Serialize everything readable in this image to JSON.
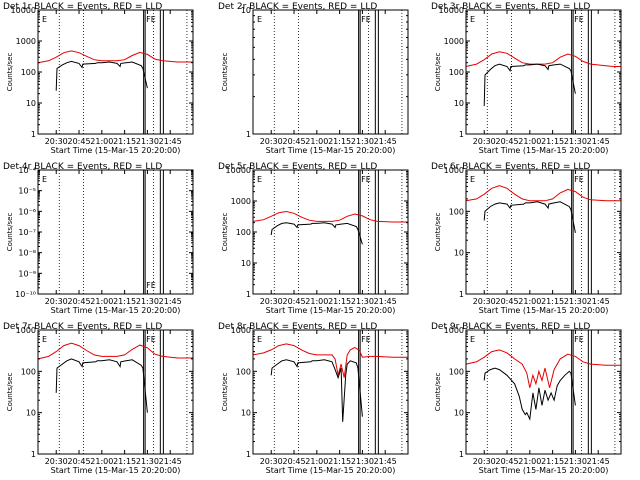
{
  "colors": {
    "events": "#000000",
    "lld": "#e60000"
  },
  "time_axis": {
    "tick_labels": [
      "20:30",
      "20:45",
      "21:00",
      "21:15",
      "21:30",
      "21:45"
    ],
    "tick_minutes_after_2020": [
      10,
      25,
      40,
      55,
      70,
      85
    ],
    "range_minutes_after_2020": [
      -2,
      100
    ],
    "xlabel": "Start Time (15-Mar-15 20:20:00)",
    "dotted_minutes": [
      12,
      28,
      74,
      96
    ],
    "solid_minutes": [
      67.5,
      68.5,
      78.5,
      80.5
    ],
    "markers": [
      {
        "text": "E",
        "minute": 0
      },
      {
        "text": "FE",
        "minute": 68.5
      }
    ]
  },
  "chart_data": [
    {
      "type": "line",
      "title": "Det 1r BLACK = Events, RED = LLD",
      "ylabel": "Counts/sec",
      "yscale": "log",
      "ylim": [
        1,
        10000
      ],
      "ytick_labels": [
        "1",
        "10",
        "100",
        "1000",
        "10000"
      ],
      "series": [
        {
          "x": [
            -2,
            5,
            10,
            15,
            20,
            25,
            30,
            35,
            40,
            50,
            55,
            60,
            65,
            70,
            75,
            80,
            90,
            95,
            100
          ],
          "y": [
            200,
            230,
            300,
            420,
            480,
            420,
            320,
            250,
            230,
            230,
            250,
            340,
            430,
            370,
            260,
            230,
            210,
            210,
            210
          ]
        },
        {
          "x": [
            10,
            10.5,
            14,
            17,
            20,
            25,
            27,
            27.5,
            36,
            37,
            40,
            45,
            50,
            52,
            52.5,
            56,
            60,
            66,
            67,
            70
          ],
          "y": [
            25,
            130,
            170,
            200,
            220,
            190,
            140,
            180,
            190,
            200,
            200,
            210,
            190,
            150,
            190,
            200,
            210,
            160,
            130,
            30
          ]
        }
      ]
    },
    {
      "type": "line",
      "title": "Det 2r BLACK = Events, RED = LLD",
      "ylabel": "Counts/sec",
      "yscale": "log",
      "ylim": [
        1,
        10
      ],
      "ytick_labels": [
        "1",
        "10"
      ],
      "series": []
    },
    {
      "type": "line",
      "title": "Det 3r BLACK = Events, RED = LLD",
      "ylabel": "Counts/sec",
      "yscale": "log",
      "ylim": [
        1,
        10000
      ],
      "ytick_labels": [
        "1",
        "10",
        "100",
        "1000",
        "10000"
      ],
      "series": [
        {
          "x": [
            -2,
            5,
            10,
            15,
            20,
            25,
            30,
            35,
            40,
            50,
            55,
            60,
            65,
            70,
            75,
            80,
            90,
            95,
            100
          ],
          "y": [
            150,
            180,
            250,
            380,
            450,
            400,
            280,
            200,
            180,
            180,
            200,
            300,
            380,
            320,
            220,
            180,
            160,
            150,
            150
          ]
        },
        {
          "x": [
            10,
            10.5,
            14,
            17,
            20,
            25,
            27,
            27.5,
            36,
            37,
            40,
            45,
            50,
            52,
            52.5,
            56,
            60,
            66,
            67,
            70
          ],
          "y": [
            8,
            80,
            120,
            160,
            180,
            150,
            110,
            150,
            160,
            170,
            170,
            180,
            160,
            120,
            160,
            170,
            180,
            130,
            110,
            20
          ]
        }
      ]
    },
    {
      "type": "line",
      "title": "Det 4r BLACK = Events, RED = LLD",
      "ylabel": "Counts/sec",
      "yscale": "log",
      "ylim": [
        1e-10,
        0.0001
      ],
      "ytick_labels": [
        "10⁻¹⁰",
        "10⁻⁹",
        "10⁻⁸",
        "10⁻⁷",
        "10⁻⁶",
        "10⁻⁵",
        "10⁻⁴"
      ],
      "series": []
    },
    {
      "type": "line",
      "title": "Det 5r BLACK = Events, RED = LLD",
      "ylabel": "Counts/sec",
      "yscale": "log",
      "ylim": [
        1,
        10000
      ],
      "ytick_labels": [
        "1",
        "10",
        "100",
        "1000",
        "10000"
      ],
      "series": [
        {
          "x": [
            -2,
            5,
            10,
            15,
            20,
            25,
            30,
            35,
            40,
            50,
            55,
            60,
            65,
            70,
            75,
            80,
            90,
            95,
            100
          ],
          "y": [
            220,
            250,
            320,
            420,
            460,
            400,
            300,
            240,
            220,
            220,
            240,
            320,
            380,
            330,
            250,
            220,
            210,
            210,
            210
          ]
        },
        {
          "x": [
            10,
            10.5,
            14,
            17,
            20,
            25,
            27,
            27.5,
            36,
            37,
            40,
            45,
            50,
            52,
            52.5,
            56,
            60,
            66,
            67,
            70
          ],
          "y": [
            80,
            120,
            160,
            190,
            200,
            180,
            140,
            170,
            180,
            190,
            190,
            200,
            180,
            140,
            170,
            180,
            190,
            150,
            120,
            40
          ]
        }
      ]
    },
    {
      "type": "line",
      "title": "Det 6r BLACK = Events, RED = LLD",
      "ylabel": "Counts/sec",
      "yscale": "log",
      "ylim": [
        1,
        1000
      ],
      "ytick_labels": [
        "1",
        "10",
        "100",
        "1000"
      ],
      "series": [
        {
          "x": [
            -2,
            5,
            10,
            15,
            20,
            25,
            30,
            35,
            40,
            50,
            55,
            60,
            65,
            70,
            75,
            80,
            90,
            95,
            100
          ],
          "y": [
            180,
            200,
            260,
            360,
            420,
            360,
            260,
            200,
            180,
            180,
            200,
            280,
            340,
            300,
            220,
            190,
            180,
            180,
            180
          ]
        },
        {
          "x": [
            10,
            10.5,
            14,
            17,
            20,
            25,
            27,
            27.5,
            36,
            37,
            40,
            45,
            50,
            52,
            52.5,
            56,
            60,
            66,
            67,
            70
          ],
          "y": [
            60,
            100,
            130,
            150,
            160,
            150,
            120,
            140,
            150,
            160,
            160,
            170,
            150,
            120,
            150,
            160,
            170,
            130,
            110,
            30
          ]
        }
      ]
    },
    {
      "type": "line",
      "title": "Det 7r BLACK = Events, RED = LLD",
      "ylabel": "Counts/sec",
      "yscale": "log",
      "ylim": [
        1,
        1000
      ],
      "ytick_labels": [
        "1",
        "10",
        "100",
        "1000"
      ],
      "series": [
        {
          "x": [
            -2,
            5,
            10,
            15,
            20,
            25,
            30,
            35,
            40,
            50,
            55,
            60,
            65,
            70,
            75,
            80,
            90,
            95,
            100
          ],
          "y": [
            200,
            230,
            300,
            420,
            480,
            420,
            320,
            250,
            230,
            230,
            250,
            340,
            430,
            370,
            260,
            230,
            210,
            210,
            210
          ]
        },
        {
          "x": [
            10,
            10.5,
            14,
            17,
            20,
            25,
            27,
            27.5,
            36,
            37,
            40,
            45,
            50,
            52,
            52.5,
            56,
            60,
            66,
            67,
            70
          ],
          "y": [
            30,
            120,
            150,
            180,
            200,
            170,
            130,
            160,
            170,
            180,
            180,
            190,
            170,
            130,
            170,
            180,
            190,
            140,
            120,
            10
          ]
        }
      ]
    },
    {
      "type": "line",
      "title": "Det 8r BLACK = Events, RED = LLD",
      "ylabel": "Counts/sec",
      "yscale": "log",
      "ylim": [
        1,
        1000
      ],
      "ytick_labels": [
        "1",
        "10",
        "100",
        "1000"
      ],
      "series": [
        {
          "x": [
            -2,
            5,
            10,
            15,
            20,
            25,
            30,
            35,
            40,
            50,
            52,
            54,
            56,
            58,
            60,
            62,
            65,
            68,
            70,
            75,
            80,
            90,
            100
          ],
          "y": [
            250,
            280,
            330,
            420,
            460,
            420,
            330,
            270,
            250,
            250,
            200,
            80,
            150,
            70,
            250,
            330,
            380,
            320,
            220,
            230,
            230,
            220,
            220
          ]
        },
        {
          "x": [
            10,
            10.5,
            14,
            17,
            20,
            25,
            27,
            27.5,
            36,
            37,
            40,
            45,
            50,
            52,
            54,
            56,
            57,
            59,
            60,
            62,
            66,
            67,
            70
          ],
          "y": [
            80,
            120,
            150,
            180,
            190,
            170,
            130,
            160,
            170,
            180,
            180,
            190,
            170,
            110,
            70,
            120,
            6,
            80,
            150,
            180,
            160,
            120,
            8
          ]
        }
      ]
    },
    {
      "type": "line",
      "title": "Det 9r BLACK = Events, RED = LLD",
      "ylabel": "Counts/sec",
      "yscale": "log",
      "ylim": [
        1,
        1000
      ],
      "ytick_labels": [
        "1",
        "10",
        "100",
        "1000"
      ],
      "series": [
        {
          "x": [
            -2,
            5,
            10,
            15,
            20,
            25,
            30,
            35,
            38,
            40,
            42,
            44,
            46,
            48,
            50,
            53,
            56,
            60,
            65,
            70,
            75,
            80,
            90,
            100
          ],
          "y": [
            150,
            170,
            220,
            300,
            330,
            280,
            200,
            150,
            90,
            40,
            80,
            50,
            100,
            60,
            120,
            40,
            110,
            200,
            260,
            230,
            170,
            150,
            140,
            140
          ]
        },
        {
          "x": [
            10,
            10.5,
            14,
            17,
            20,
            25,
            30,
            33,
            35,
            37,
            38,
            40,
            42,
            44,
            46,
            48,
            50,
            52,
            54,
            56,
            58,
            60,
            63,
            66,
            67,
            70
          ],
          "y": [
            60,
            90,
            110,
            120,
            110,
            80,
            50,
            25,
            12,
            9,
            10,
            7,
            30,
            12,
            40,
            15,
            35,
            20,
            30,
            20,
            45,
            60,
            80,
            100,
            90,
            15
          ]
        }
      ]
    }
  ]
}
